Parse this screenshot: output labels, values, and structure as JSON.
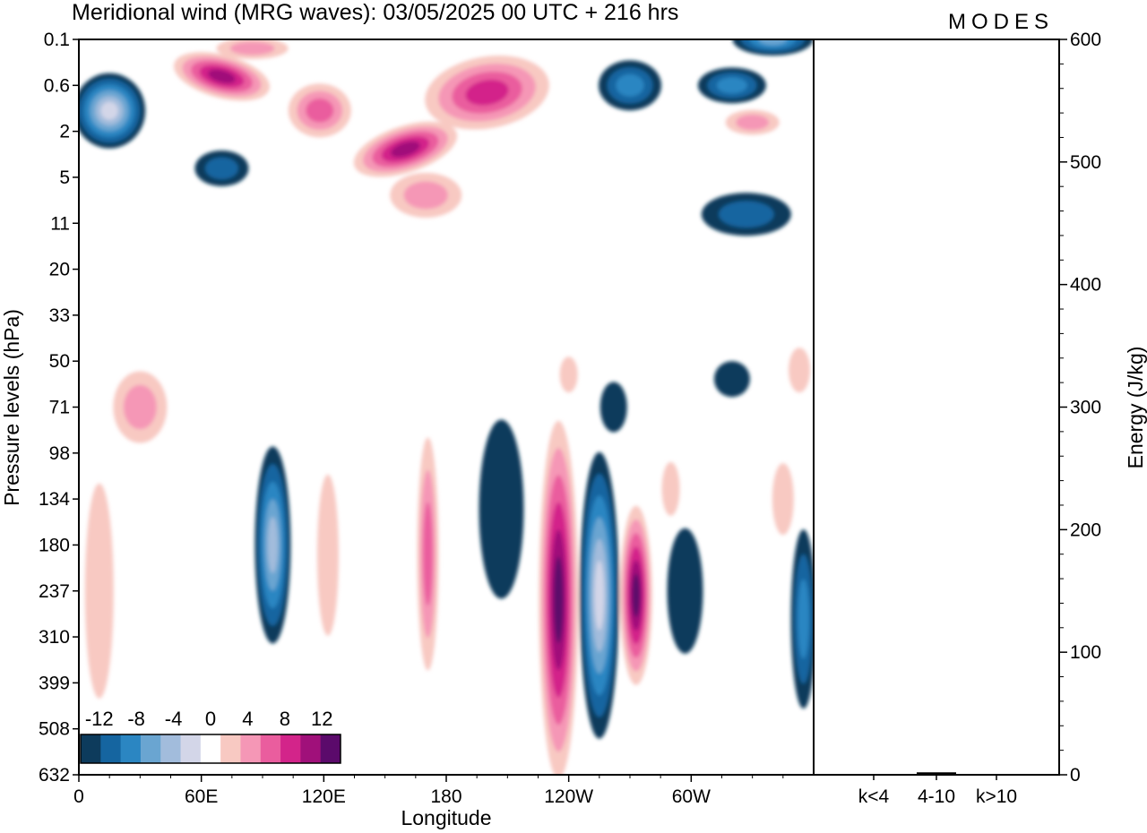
{
  "title": "Meridional wind (MRG waves):  03/05/2025  00 UTC  + 216 hrs",
  "logo": "MODES",
  "colors": {
    "neg": [
      "#0d3b5c",
      "#1565a0",
      "#2b86c2",
      "#6aa5d1",
      "#a2bcdc",
      "#d3d6e8"
    ],
    "pos": [
      "#f8c9c2",
      "#f597b6",
      "#ea5d9e",
      "#d3248a",
      "#a0107a",
      "#5b0a6b"
    ]
  },
  "chart_data": [
    {
      "type": "heatmap",
      "title": "Meridional wind (MRG waves):  03/05/2025  00 UTC  + 216 hrs",
      "xlabel": "Longitude",
      "ylabel": "Pressure levels (hPa)",
      "x_ticks": [
        "0",
        "60E",
        "120E",
        "180",
        "120W",
        "60W"
      ],
      "x_range_deg": [
        0,
        360
      ],
      "y_ticks": [
        "0.1",
        "0.6",
        "2",
        "5",
        "11",
        "20",
        "33",
        "50",
        "71",
        "98",
        "134",
        "180",
        "237",
        "310",
        "399",
        "508",
        "632"
      ],
      "colorbar_levels": [
        -14,
        -12,
        -10,
        -8,
        -6,
        -4,
        -2,
        2,
        4,
        6,
        8,
        10,
        12,
        14
      ],
      "colorbar_labels": [
        "-12",
        "-8",
        "-4",
        "0",
        "4",
        "8",
        "12"
      ],
      "features": [
        {
          "lon": 15,
          "level": "2",
          "value": -12
        },
        {
          "lon": 70,
          "level": "0.6",
          "value": 11
        },
        {
          "lon": 160,
          "level": "2",
          "value": 10
        },
        {
          "lon": 200,
          "level": "0.6",
          "value": 8
        },
        {
          "lon": 270,
          "level": "0.6",
          "value": -6
        },
        {
          "lon": 340,
          "level": "0.1",
          "value": -8
        },
        {
          "lon": 95,
          "level": "180",
          "value": -10
        },
        {
          "lon": 171,
          "level": "180",
          "value": 7
        },
        {
          "lon": 235,
          "level": "237",
          "value": 12
        },
        {
          "lon": 255,
          "level": "237",
          "value": -14
        },
        {
          "lon": 273,
          "level": "237",
          "value": 12
        },
        {
          "lon": 10,
          "level": "237",
          "value": 3
        },
        {
          "lon": 355,
          "level": "310",
          "value": -6
        }
      ]
    },
    {
      "type": "bar",
      "ylabel": "Energy (J/kg)",
      "categories": [
        "k<4",
        "4-10",
        "k>10"
      ],
      "values": [
        0.5,
        2,
        0.5
      ],
      "ylim": [
        0,
        600
      ],
      "y_ticks": [
        "0",
        "100",
        "200",
        "300",
        "400",
        "500",
        "600"
      ]
    }
  ]
}
